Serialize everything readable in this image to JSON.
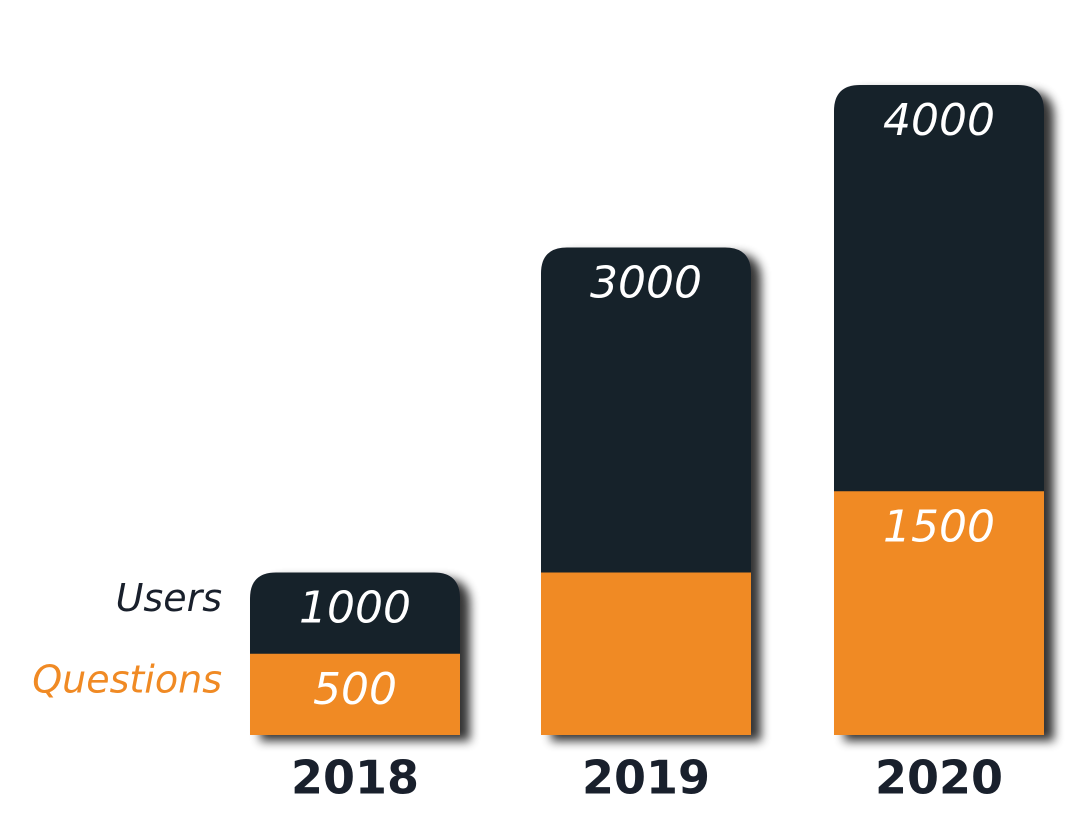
{
  "chart_data": {
    "type": "bar",
    "categories": [
      "2018",
      "2019",
      "2020"
    ],
    "series": [
      {
        "name": "Users",
        "color": "#19202c",
        "values": [
          1000,
          3000,
          4000
        ]
      },
      {
        "name": "Questions",
        "color": "#f08a24",
        "values": [
          500,
          1000,
          1500
        ],
        "value_labels": [
          "500",
          null,
          "1500"
        ]
      }
    ],
    "ylim": [
      0,
      4000
    ]
  }
}
